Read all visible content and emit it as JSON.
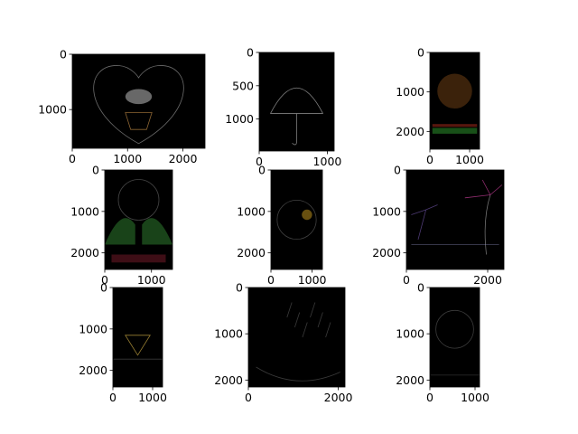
{
  "figure": {
    "background": "#ffffff",
    "image_background": "#000000",
    "axis_color": "#000000"
  },
  "chart_data": [
    {
      "type": "image",
      "description_name": "heart-tree-edges",
      "xlim": [
        0,
        2400
      ],
      "ylim": [
        1700,
        0
      ],
      "xticks": [
        {
          "value": 0,
          "label": "0"
        },
        {
          "value": 1000,
          "label": "1000"
        },
        {
          "value": 2000,
          "label": "2000"
        }
      ],
      "yticks": [
        {
          "value": 0,
          "label": "0"
        },
        {
          "value": 1000,
          "label": "1000"
        }
      ]
    },
    {
      "type": "image",
      "description_name": "umbrella-edges",
      "xlim": [
        0,
        1100
      ],
      "ylim": [
        1480,
        0
      ],
      "xticks": [
        {
          "value": 0,
          "label": "0"
        },
        {
          "value": 1000,
          "label": "1000"
        }
      ],
      "yticks": [
        {
          "value": 0,
          "label": "0"
        },
        {
          "value": 500,
          "label": "500"
        },
        {
          "value": 1000,
          "label": "1000"
        }
      ]
    },
    {
      "type": "image",
      "description_name": "autumn-tree-edges",
      "xlim": [
        0,
        1250
      ],
      "ylim": [
        2450,
        0
      ],
      "xticks": [
        {
          "value": 0,
          "label": "0"
        },
        {
          "value": 1000,
          "label": "1000"
        }
      ],
      "yticks": [
        {
          "value": 0,
          "label": "0"
        },
        {
          "value": 1000,
          "label": "1000"
        },
        {
          "value": 2000,
          "label": "2000"
        }
      ]
    },
    {
      "type": "image",
      "description_name": "window-hills-edges",
      "xlim": [
        0,
        1450
      ],
      "ylim": [
        2400,
        0
      ],
      "xticks": [
        {
          "value": 0,
          "label": "0"
        },
        {
          "value": 1000,
          "label": "1000"
        }
      ],
      "yticks": [
        {
          "value": 0,
          "label": "0"
        },
        {
          "value": 1000,
          "label": "1000"
        },
        {
          "value": 2000,
          "label": "2000"
        }
      ]
    },
    {
      "type": "image",
      "description_name": "circle-flowers-edges",
      "xlim": [
        0,
        1250
      ],
      "ylim": [
        2400,
        0
      ],
      "xticks": [
        {
          "value": 0,
          "label": "0"
        },
        {
          "value": 1000,
          "label": "1000"
        }
      ],
      "yticks": [
        {
          "value": 0,
          "label": "0"
        },
        {
          "value": 1000,
          "label": "1000"
        },
        {
          "value": 2000,
          "label": "2000"
        }
      ]
    },
    {
      "type": "image",
      "description_name": "palm-beach-edges",
      "xlim": [
        0,
        2400
      ],
      "ylim": [
        2400,
        0
      ],
      "xticks": [
        {
          "value": 0,
          "label": "0"
        },
        {
          "value": 2000,
          "label": "2000"
        }
      ],
      "yticks": [
        {
          "value": 0,
          "label": "0"
        },
        {
          "value": 1000,
          "label": "1000"
        },
        {
          "value": 2000,
          "label": "2000"
        }
      ]
    },
    {
      "type": "image",
      "description_name": "triangle-edges",
      "xlim": [
        0,
        1250
      ],
      "ylim": [
        2400,
        0
      ],
      "xticks": [
        {
          "value": 0,
          "label": "0"
        },
        {
          "value": 1000,
          "label": "1000"
        }
      ],
      "yticks": [
        {
          "value": 0,
          "label": "0"
        },
        {
          "value": 1000,
          "label": "1000"
        },
        {
          "value": 2000,
          "label": "2000"
        }
      ]
    },
    {
      "type": "image",
      "description_name": "moon-rain-edges",
      "xlim": [
        0,
        2150
      ],
      "ylim": [
        2150,
        0
      ],
      "xticks": [
        {
          "value": 0,
          "label": "0"
        },
        {
          "value": 2000,
          "label": "2000"
        }
      ],
      "yticks": [
        {
          "value": 0,
          "label": "0"
        },
        {
          "value": 1000,
          "label": "1000"
        },
        {
          "value": 2000,
          "label": "2000"
        }
      ]
    },
    {
      "type": "image",
      "description_name": "dark-circle-edges",
      "xlim": [
        0,
        1100
      ],
      "ylim": [
        2150,
        0
      ],
      "xticks": [
        {
          "value": 0,
          "label": "0"
        },
        {
          "value": 1000,
          "label": "1000"
        }
      ],
      "yticks": [
        {
          "value": 0,
          "label": "0"
        },
        {
          "value": 1000,
          "label": "1000"
        },
        {
          "value": 2000,
          "label": "2000"
        }
      ]
    }
  ]
}
